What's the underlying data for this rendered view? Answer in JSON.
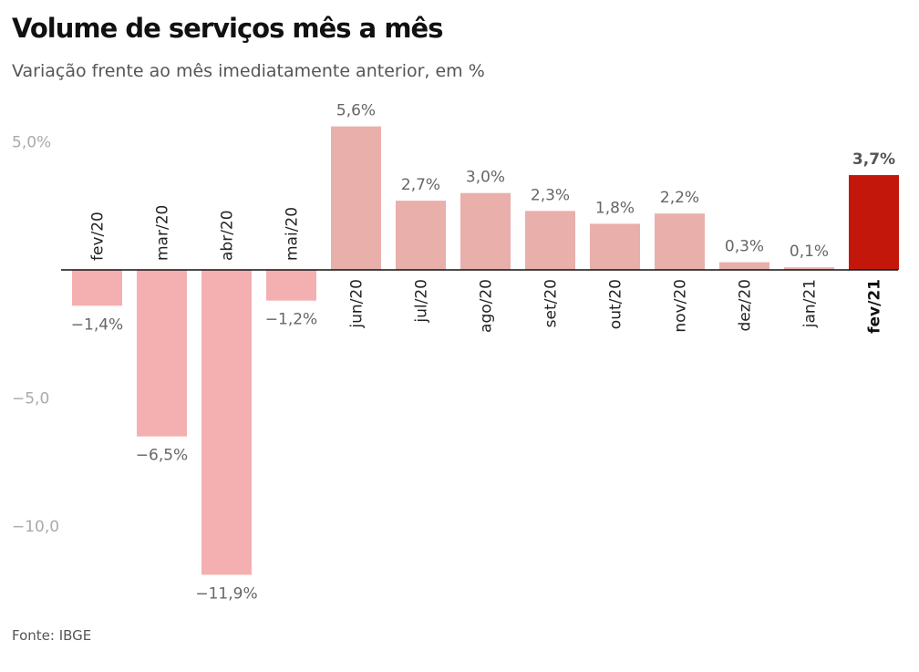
{
  "header": {
    "title": "Volume de serviços mês a mês",
    "subtitle": "Variação frente ao mês imediatamente anterior, em %"
  },
  "footer": {
    "source": "Fonte: IBGE"
  },
  "chart_data": {
    "type": "bar",
    "title": "Volume de serviços mês a mês",
    "subtitle": "Variação frente ao mês imediatamente anterior, em %",
    "xlabel": "",
    "ylabel": "",
    "ylim": [
      -12,
      5.6
    ],
    "y_ticks": [
      {
        "value": 5,
        "label": "5,0%"
      },
      {
        "value": -5,
        "label": "−5,0"
      },
      {
        "value": -10,
        "label": "−10,0"
      }
    ],
    "grid": false,
    "legend": "none",
    "categories": [
      "fev/20",
      "mar/20",
      "abr/20",
      "mai/20",
      "jun/20",
      "jul/20",
      "ago/20",
      "set/20",
      "out/20",
      "nov/20",
      "dez/20",
      "jan/21",
      "fev/21"
    ],
    "values": [
      -1.4,
      -6.5,
      -11.9,
      -1.2,
      5.6,
      2.7,
      3.0,
      2.3,
      1.8,
      2.2,
      0.3,
      0.1,
      3.7
    ],
    "value_labels": [
      "−1,4%",
      "−6,5%",
      "−11,9%",
      "−1,2%",
      "5,6%",
      "2,7%",
      "3,0%",
      "2,3%",
      "1,8%",
      "2,2%",
      "0,3%",
      "0,1%",
      "3,7%"
    ],
    "highlight_index": 12,
    "colors": {
      "negative": "#f4b0b0",
      "positive": "#e9afab",
      "highlight": "#c4170c",
      "axis": "#111111"
    }
  }
}
